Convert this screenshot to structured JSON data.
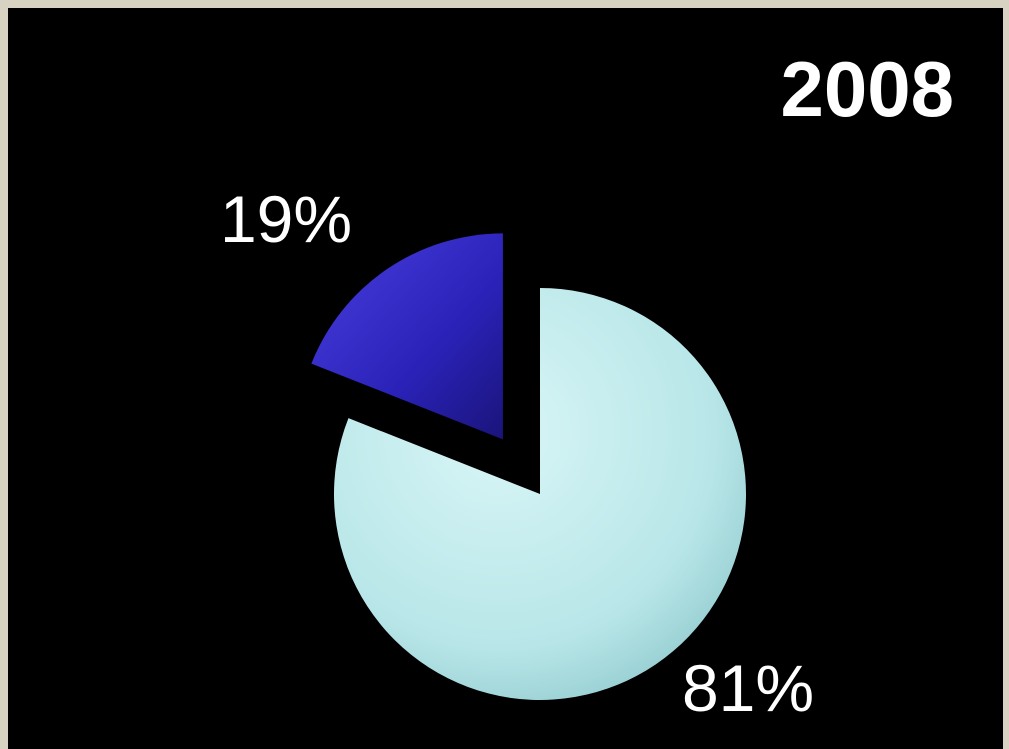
{
  "chart_data": {
    "type": "pie",
    "title": "2008",
    "slices": [
      {
        "label": "19%",
        "value": 19,
        "color": "#2a22b8",
        "exploded": true
      },
      {
        "label": "81%",
        "value": 81,
        "color": "#bfeaec",
        "exploded": false
      }
    ],
    "legend": "none",
    "background": "#000000"
  }
}
